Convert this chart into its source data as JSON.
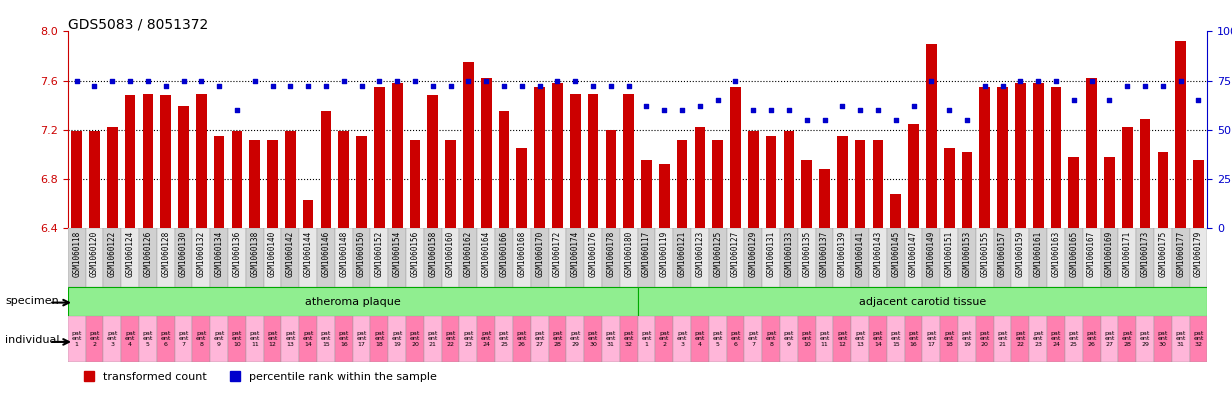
{
  "title": "GDS5083 / 8051372",
  "bar_color": "#cc0000",
  "dot_color": "#0000cc",
  "ylim_left": [
    6.4,
    8.0
  ],
  "ylim_right": [
    0,
    100
  ],
  "yticks_left": [
    6.4,
    6.8,
    7.2,
    7.6,
    8.0
  ],
  "yticks_right": [
    0,
    25,
    50,
    75,
    100
  ],
  "grid_lines": [
    6.8,
    7.2,
    7.6
  ],
  "samples": [
    "GSM1060118",
    "GSM1060120",
    "GSM1060122",
    "GSM1060124",
    "GSM1060126",
    "GSM1060128",
    "GSM1060130",
    "GSM1060132",
    "GSM1060134",
    "GSM1060136",
    "GSM1060138",
    "GSM1060140",
    "GSM1060142",
    "GSM1060144",
    "GSM1060146",
    "GSM1060148",
    "GSM1060150",
    "GSM1060152",
    "GSM1060154",
    "GSM1060156",
    "GSM1060158",
    "GSM1060160",
    "GSM1060162",
    "GSM1060164",
    "GSM1060166",
    "GSM1060168",
    "GSM1060170",
    "GSM1060172",
    "GSM1060174",
    "GSM1060176",
    "GSM1060178",
    "GSM1060180",
    "GSM1060117",
    "GSM1060119",
    "GSM1060121",
    "GSM1060123",
    "GSM1060125",
    "GSM1060127",
    "GSM1060129",
    "GSM1060131",
    "GSM1060133",
    "GSM1060135",
    "GSM1060137",
    "GSM1060139",
    "GSM1060141",
    "GSM1060143",
    "GSM1060145",
    "GSM1060147",
    "GSM1060149",
    "GSM1060151",
    "GSM1060153",
    "GSM1060155",
    "GSM1060157",
    "GSM1060159",
    "GSM1060161",
    "GSM1060163",
    "GSM1060165",
    "GSM1060167",
    "GSM1060169",
    "GSM1060171",
    "GSM1060173",
    "GSM1060175",
    "GSM1060177",
    "GSM1060179"
  ],
  "bar_values": [
    7.19,
    7.19,
    7.22,
    7.48,
    7.49,
    7.48,
    7.39,
    7.49,
    7.15,
    7.19,
    7.12,
    7.12,
    7.19,
    6.63,
    7.35,
    7.19,
    7.15,
    7.55,
    7.58,
    7.12,
    7.48,
    7.12,
    7.75,
    7.62,
    7.35,
    7.05,
    7.55,
    7.58,
    7.49,
    7.49,
    7.2,
    7.49,
    6.95,
    6.92,
    7.12,
    7.22,
    7.12,
    7.55,
    7.19,
    7.15,
    7.19,
    6.95,
    6.88,
    7.15,
    7.12,
    7.12,
    6.68,
    7.25,
    7.9,
    7.05,
    7.02,
    7.55,
    7.55,
    7.58,
    7.58,
    7.55,
    6.98,
    7.62,
    6.98,
    7.22,
    7.29,
    7.02,
    7.92,
    6.95
  ],
  "dot_values": [
    75,
    72,
    75,
    75,
    75,
    72,
    75,
    75,
    72,
    60,
    75,
    72,
    72,
    72,
    72,
    75,
    72,
    75,
    75,
    75,
    72,
    72,
    75,
    75,
    72,
    72,
    72,
    75,
    75,
    72,
    72,
    72,
    62,
    60,
    60,
    62,
    65,
    75,
    60,
    60,
    60,
    55,
    55,
    62,
    60,
    60,
    55,
    62,
    75,
    60,
    55,
    72,
    72,
    75,
    75,
    75,
    65,
    75,
    65,
    72,
    72,
    72,
    75,
    65
  ],
  "group1_label": "atheroma plaque",
  "group2_label": "adjacent carotid tissue",
  "group1_count": 32,
  "group2_count": 32,
  "group1_color": "#90ee90",
  "group2_color": "#90ee90",
  "individual_colors_group1": [
    "#ffb6c1",
    "#ffb6c1",
    "#ffb6c1",
    "#ffb6c1",
    "#ffb6c1",
    "#ffb6c1",
    "#ffb6c1",
    "#ffb6c1",
    "#ff69b4",
    "#ff69b4",
    "#ff69b4",
    "#ff69b4",
    "#ff69b4",
    "#ff69b4",
    "#ff69b4",
    "#ffb6c1",
    "#ffb6c1",
    "#ffb6c1",
    "#ffb6c1",
    "#ffb6c1",
    "#ffb6c1",
    "#ffb6c1",
    "#ffb6c1",
    "#ff69b4",
    "#ff69b4",
    "#ff69b4",
    "#ff69b4",
    "#ff69b4",
    "#ff69b4",
    "#ff69b4",
    "#ff69b4",
    "#ff69b4"
  ],
  "individual_labels_group1": [
    "pat\nent\n1",
    "pat\nent\n2",
    "pat\nent\n3",
    "pat\nent\n4",
    "pat\nent\n5",
    "pat\nent\n6",
    "pat\nent\n7",
    "pat\nent\n8",
    "pat\nent\n9",
    "pat\nent\n10",
    "pat\nent\n11",
    "pat\nent\n12",
    "pat\nent\n13",
    "pat\nent\n14",
    "pat\nent\n15",
    "pat\nent\n16",
    "pat\nent\n17",
    "pat\nent\n18",
    "pat\nent\n19",
    "pat\nent\n20",
    "pat\nent\n21",
    "pat\nent\n22",
    "pat\nent\n23",
    "pat\nent\n24",
    "pat\nent\n25",
    "pat\nent\n26",
    "pat\nent\n27",
    "pat\nent\n28",
    "pat\nent\n29",
    "pat\nent\n30",
    "pat\nent\n31",
    "pat\nent\n32"
  ],
  "legend_items": [
    "transformed count",
    "percentile rank within the sample"
  ],
  "legend_colors": [
    "#cc0000",
    "#0000cc"
  ],
  "legend_markers": [
    "s",
    "s"
  ],
  "bg_color": "#ffffff",
  "plot_bg_color": "#ffffff",
  "tick_color_left": "#cc0000",
  "tick_color_right": "#0000cc"
}
